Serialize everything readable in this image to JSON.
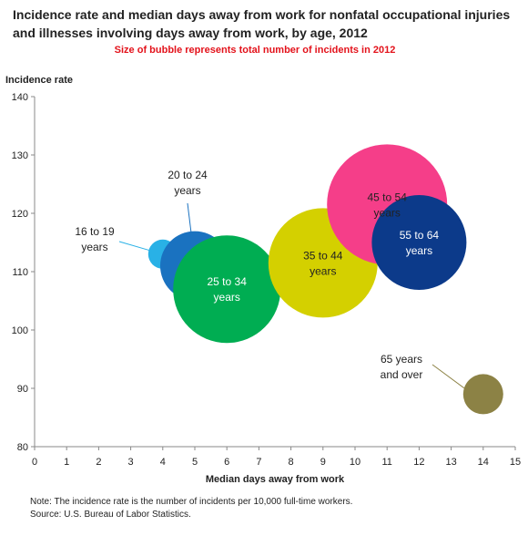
{
  "chart_data": {
    "type": "scatter",
    "title": "Incidence rate and median days away from work for nonfatal occupational injuries and illnesses involving days away from work, by age, 2012",
    "subtitle": "Size of bubble represents total number of incidents in 2012",
    "xlabel": "Median days away from work",
    "ylabel": "Incidence rate",
    "xlim": [
      0,
      15
    ],
    "ylim": [
      80,
      140
    ],
    "x_ticks": [
      "0",
      "1",
      "2",
      "3",
      "4",
      "5",
      "6",
      "7",
      "8",
      "9",
      "10",
      "11",
      "12",
      "13",
      "14",
      "15"
    ],
    "y_ticks": [
      "80",
      "90",
      "100",
      "110",
      "120",
      "130",
      "140"
    ],
    "grid": false,
    "series": [
      {
        "label": "16 to 19 years",
        "label_lines": [
          "16 to 19",
          "years"
        ],
        "x": 4,
        "y": 113,
        "size": 16,
        "color": "#29b1e6"
      },
      {
        "label": "20 to 24 years",
        "label_lines": [
          "20 to 24",
          "years"
        ],
        "x": 5,
        "y": 111,
        "size": 38,
        "color": "#1a72c0"
      },
      {
        "label": "25 to 34 years",
        "label_lines": [
          "25 to 34",
          "years"
        ],
        "x": 6,
        "y": 107,
        "size": 59,
        "color": "#00ad52"
      },
      {
        "label": "35 to 44 years",
        "label_lines": [
          "35 to 44",
          "years"
        ],
        "x": 9,
        "y": 111.5,
        "size": 60,
        "color": "#d4d000"
      },
      {
        "label": "45 to 54 years",
        "label_lines": [
          "45 to 54",
          "years"
        ],
        "x": 11,
        "y": 121.5,
        "size": 66,
        "color": "#f53e89"
      },
      {
        "label": "55 to 64 years",
        "label_lines": [
          "55 to 64",
          "years"
        ],
        "x": 12,
        "y": 115,
        "size": 52,
        "color": "#0c3a8a"
      },
      {
        "label": "65 years and over",
        "label_lines": [
          "65 years",
          "and over"
        ],
        "x": 14,
        "y": 89,
        "size": 22,
        "color": "#8c8245"
      }
    ]
  },
  "note": "Note: The incidence rate is the number of incidents per 10,000 full-time workers.",
  "source": "Source: U.S. Bureau of Labor Statistics."
}
